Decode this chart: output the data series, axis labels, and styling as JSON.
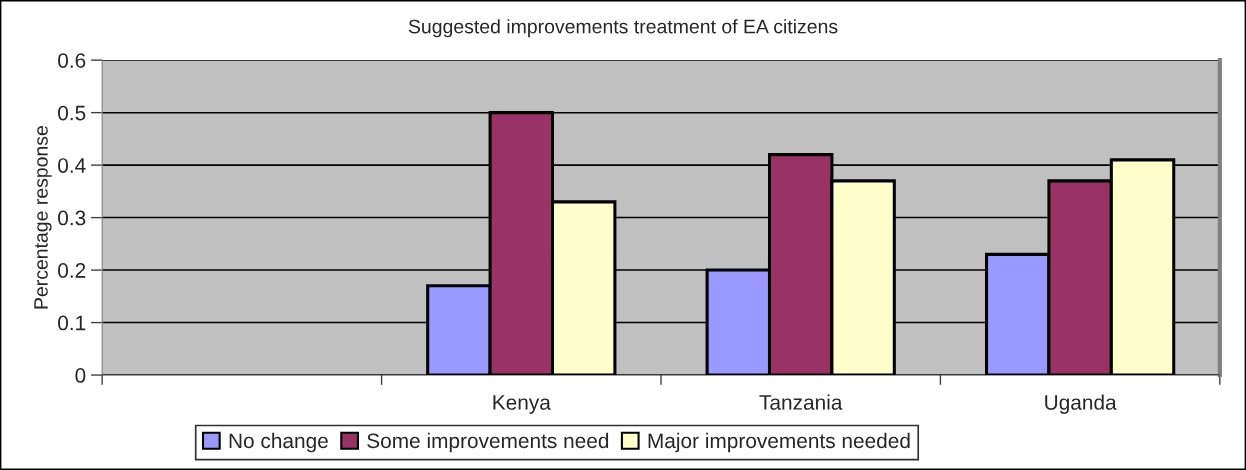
{
  "chart_data": {
    "type": "bar",
    "title": "Suggested improvements treatment of EA citizens",
    "ylabel": "Percentage response",
    "categories": [
      null,
      "Kenya",
      "Tanzania",
      "Uganda"
    ],
    "series": [
      {
        "name": "No change",
        "color": "#9999ff",
        "values": [
          null,
          0.17,
          0.2,
          0.23
        ]
      },
      {
        "name": "Some improvements need",
        "color": "#993366",
        "values": [
          null,
          0.5,
          0.42,
          0.37
        ]
      },
      {
        "name": "Major improvements needed",
        "color": "#ffffcc",
        "values": [
          null,
          0.33,
          0.37,
          0.41
        ]
      }
    ],
    "ylim": [
      0,
      0.6
    ],
    "yticks": [
      0,
      0.1,
      0.2,
      0.3,
      0.4,
      0.5,
      0.6
    ],
    "grid": "y",
    "legend": "bottom"
  }
}
